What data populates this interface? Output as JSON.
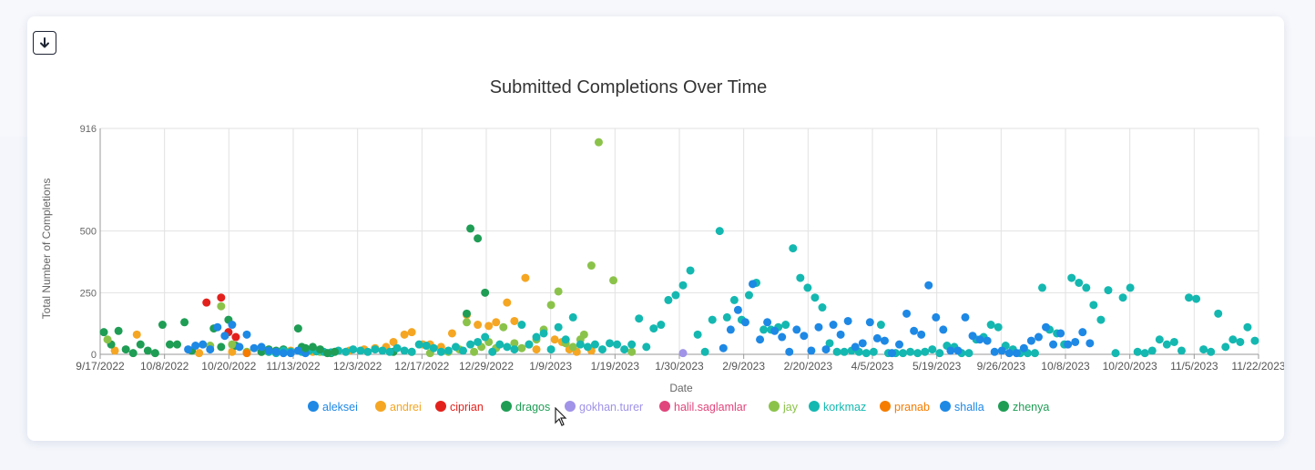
{
  "toolbar": {
    "download_icon": "arrow-down-icon"
  },
  "chart_data": {
    "type": "scatter",
    "title": "Submitted Completions Over Time",
    "xlabel": "Date",
    "ylabel": "Total Number of Completions",
    "ylim": [
      0,
      916
    ],
    "y_ticks": [
      0,
      250,
      500,
      916
    ],
    "x_scale": "category (dates)",
    "x_ticks": [
      "9/17/2022",
      "10/8/2022",
      "10/20/2022",
      "11/13/2022",
      "12/3/2022",
      "12/17/2022",
      "12/29/2022",
      "1/9/2023",
      "1/19/2023",
      "1/30/2023",
      "2/9/2023",
      "2/20/2023",
      "4/5/2023",
      "5/19/2023",
      "9/26/2023",
      "10/8/2023",
      "10/20/2023",
      "11/5/2023",
      "11/22/2023"
    ],
    "grid": true,
    "legend_position": "bottom",
    "series": [
      {
        "name": "aleksei",
        "color": "#1e88e5",
        "points": []
      },
      {
        "name": "andrei",
        "color": "#f5a623",
        "points": [
          [
            4,
            15
          ],
          [
            10,
            80
          ],
          [
            27,
            5
          ],
          [
            36,
            10
          ],
          [
            44,
            10
          ],
          [
            52,
            15
          ],
          [
            58,
            10
          ],
          [
            68,
            15
          ],
          [
            72,
            20
          ],
          [
            75,
            25
          ],
          [
            78,
            30
          ],
          [
            80,
            50
          ],
          [
            83,
            80
          ],
          [
            85,
            90
          ],
          [
            88,
            40
          ],
          [
            90,
            40
          ],
          [
            93,
            30
          ],
          [
            96,
            85
          ],
          [
            100,
            160
          ],
          [
            103,
            120
          ],
          [
            106,
            115
          ],
          [
            108,
            130
          ],
          [
            111,
            210
          ],
          [
            113,
            135
          ],
          [
            116,
            310
          ],
          [
            119,
            20
          ],
          [
            124,
            60
          ],
          [
            126,
            50
          ],
          [
            128,
            20
          ],
          [
            130,
            10
          ],
          [
            134,
            15
          ]
        ]
      },
      {
        "name": "ciprian",
        "color": "#e3211c",
        "points": [
          [
            29,
            210
          ],
          [
            33,
            230
          ],
          [
            35,
            90
          ],
          [
            37,
            70
          ]
        ]
      },
      {
        "name": "dragos",
        "color": "#1f9d55",
        "points": [
          [
            1,
            90
          ],
          [
            3,
            40
          ],
          [
            5,
            95
          ],
          [
            7,
            20
          ],
          [
            9,
            5
          ],
          [
            11,
            40
          ],
          [
            13,
            15
          ],
          [
            15,
            5
          ],
          [
            17,
            120
          ],
          [
            19,
            40
          ],
          [
            21,
            40
          ],
          [
            23,
            130
          ],
          [
            25,
            15
          ],
          [
            31,
            105
          ],
          [
            33,
            30
          ],
          [
            35,
            140
          ],
          [
            37,
            35
          ],
          [
            44,
            10
          ],
          [
            46,
            20
          ],
          [
            48,
            15
          ],
          [
            50,
            20
          ],
          [
            52,
            10
          ],
          [
            54,
            105
          ],
          [
            55,
            30
          ],
          [
            57,
            15
          ],
          [
            59,
            15
          ],
          [
            63,
            5
          ],
          [
            80,
            10
          ],
          [
            100,
            165
          ],
          [
            101,
            510
          ],
          [
            103,
            470
          ],
          [
            105,
            250
          ]
        ]
      },
      {
        "name": "gokhan.turer",
        "color": "#a093e8",
        "points": [
          [
            159,
            5
          ]
        ]
      },
      {
        "name": "halil.saglamlar",
        "color": "#e0457b",
        "points": []
      },
      {
        "name": "jay",
        "color": "#8bc34a",
        "points": [
          [
            2,
            60
          ],
          [
            30,
            35
          ],
          [
            33,
            195
          ],
          [
            36,
            40
          ],
          [
            40,
            10
          ],
          [
            46,
            10
          ],
          [
            60,
            10
          ],
          [
            85,
            10
          ],
          [
            90,
            5
          ],
          [
            95,
            10
          ],
          [
            98,
            20
          ],
          [
            100,
            130
          ],
          [
            102,
            10
          ],
          [
            104,
            30
          ],
          [
            106,
            50
          ],
          [
            108,
            25
          ],
          [
            110,
            110
          ],
          [
            113,
            45
          ],
          [
            115,
            25
          ],
          [
            117,
            40
          ],
          [
            119,
            60
          ],
          [
            121,
            100
          ],
          [
            123,
            200
          ],
          [
            125,
            255
          ],
          [
            127,
            45
          ],
          [
            129,
            30
          ],
          [
            131,
            60
          ],
          [
            132,
            80
          ],
          [
            134,
            360
          ],
          [
            136,
            860
          ],
          [
            140,
            300
          ],
          [
            145,
            10
          ]
        ]
      },
      {
        "name": "korkmaz",
        "color": "#14b8b0",
        "points": [
          [
            46,
            10
          ],
          [
            48,
            5
          ],
          [
            50,
            15
          ],
          [
            52,
            10
          ],
          [
            55,
            10
          ],
          [
            57,
            15
          ],
          [
            59,
            12
          ],
          [
            61,
            10
          ],
          [
            63,
            8
          ],
          [
            65,
            15
          ],
          [
            67,
            10
          ],
          [
            69,
            20
          ],
          [
            71,
            15
          ],
          [
            73,
            10
          ],
          [
            75,
            20
          ],
          [
            77,
            15
          ],
          [
            79,
            10
          ],
          [
            81,
            25
          ],
          [
            83,
            15
          ],
          [
            85,
            10
          ],
          [
            87,
            40
          ],
          [
            89,
            35
          ],
          [
            91,
            25
          ],
          [
            93,
            10
          ],
          [
            95,
            15
          ],
          [
            97,
            30
          ],
          [
            99,
            15
          ],
          [
            101,
            40
          ],
          [
            103,
            50
          ],
          [
            105,
            70
          ],
          [
            107,
            10
          ],
          [
            109,
            40
          ],
          [
            111,
            30
          ],
          [
            113,
            20
          ],
          [
            115,
            120
          ],
          [
            117,
            40
          ],
          [
            119,
            70
          ],
          [
            121,
            85
          ],
          [
            123,
            20
          ],
          [
            125,
            110
          ],
          [
            127,
            60
          ],
          [
            129,
            150
          ],
          [
            131,
            40
          ],
          [
            133,
            30
          ],
          [
            135,
            40
          ],
          [
            137,
            20
          ],
          [
            139,
            45
          ],
          [
            141,
            40
          ],
          [
            143,
            20
          ],
          [
            145,
            40
          ],
          [
            147,
            145
          ],
          [
            149,
            30
          ],
          [
            151,
            105
          ],
          [
            153,
            120
          ],
          [
            155,
            220
          ],
          [
            157,
            240
          ],
          [
            159,
            280
          ],
          [
            161,
            340
          ],
          [
            163,
            80
          ],
          [
            165,
            10
          ],
          [
            167,
            140
          ],
          [
            169,
            500
          ],
          [
            171,
            150
          ],
          [
            173,
            220
          ],
          [
            175,
            140
          ],
          [
            177,
            240
          ],
          [
            179,
            290
          ],
          [
            181,
            100
          ],
          [
            183,
            100
          ],
          [
            185,
            110
          ],
          [
            187,
            120
          ],
          [
            189,
            430
          ],
          [
            191,
            310
          ],
          [
            193,
            270
          ],
          [
            195,
            230
          ],
          [
            197,
            190
          ],
          [
            199,
            45
          ],
          [
            201,
            10
          ],
          [
            203,
            10
          ],
          [
            205,
            15
          ],
          [
            207,
            10
          ],
          [
            209,
            5
          ],
          [
            211,
            10
          ],
          [
            213,
            120
          ],
          [
            215,
            5
          ],
          [
            217,
            5
          ],
          [
            219,
            5
          ],
          [
            221,
            10
          ],
          [
            223,
            5
          ],
          [
            225,
            10
          ],
          [
            227,
            20
          ],
          [
            229,
            5
          ],
          [
            231,
            35
          ],
          [
            233,
            30
          ],
          [
            235,
            5
          ],
          [
            237,
            5
          ],
          [
            239,
            60
          ],
          [
            241,
            70
          ],
          [
            243,
            120
          ],
          [
            245,
            110
          ],
          [
            247,
            35
          ],
          [
            249,
            20
          ],
          [
            251,
            5
          ],
          [
            253,
            5
          ],
          [
            255,
            5
          ],
          [
            257,
            270
          ],
          [
            259,
            100
          ],
          [
            261,
            85
          ],
          [
            263,
            40
          ],
          [
            265,
            310
          ],
          [
            267,
            290
          ],
          [
            269,
            270
          ],
          [
            271,
            200
          ],
          [
            273,
            140
          ],
          [
            275,
            260
          ],
          [
            277,
            5
          ],
          [
            279,
            230
          ],
          [
            281,
            270
          ],
          [
            283,
            10
          ],
          [
            285,
            5
          ],
          [
            287,
            15
          ],
          [
            289,
            60
          ],
          [
            291,
            40
          ],
          [
            293,
            50
          ],
          [
            295,
            15
          ],
          [
            297,
            230
          ],
          [
            299,
            225
          ],
          [
            301,
            20
          ],
          [
            303,
            10
          ],
          [
            305,
            165
          ],
          [
            307,
            30
          ],
          [
            309,
            60
          ],
          [
            311,
            50
          ],
          [
            313,
            110
          ],
          [
            315,
            55
          ]
        ]
      },
      {
        "name": "pranab",
        "color": "#f57c00",
        "points": [
          [
            40,
            5
          ]
        ]
      },
      {
        "name": "shalla",
        "color": "#1e88e5",
        "points": [
          [
            24,
            20
          ],
          [
            26,
            35
          ],
          [
            28,
            40
          ],
          [
            30,
            20
          ],
          [
            32,
            110
          ],
          [
            34,
            75
          ],
          [
            36,
            120
          ],
          [
            38,
            30
          ],
          [
            40,
            80
          ],
          [
            42,
            25
          ],
          [
            44,
            30
          ],
          [
            46,
            15
          ],
          [
            48,
            10
          ],
          [
            50,
            5
          ],
          [
            52,
            5
          ],
          [
            54,
            15
          ],
          [
            56,
            5
          ],
          [
            170,
            25
          ],
          [
            172,
            100
          ],
          [
            174,
            180
          ],
          [
            176,
            130
          ],
          [
            178,
            285
          ],
          [
            180,
            60
          ],
          [
            182,
            130
          ],
          [
            184,
            95
          ],
          [
            186,
            70
          ],
          [
            188,
            10
          ],
          [
            190,
            100
          ],
          [
            192,
            75
          ],
          [
            194,
            15
          ],
          [
            196,
            110
          ],
          [
            198,
            20
          ],
          [
            200,
            120
          ],
          [
            202,
            80
          ],
          [
            204,
            135
          ],
          [
            206,
            30
          ],
          [
            208,
            45
          ],
          [
            210,
            130
          ],
          [
            212,
            65
          ],
          [
            214,
            55
          ],
          [
            216,
            5
          ],
          [
            218,
            40
          ],
          [
            220,
            165
          ],
          [
            222,
            95
          ],
          [
            224,
            80
          ],
          [
            226,
            280
          ],
          [
            228,
            150
          ],
          [
            230,
            100
          ],
          [
            232,
            15
          ],
          [
            234,
            15
          ],
          [
            236,
            150
          ],
          [
            238,
            75
          ],
          [
            240,
            60
          ],
          [
            242,
            55
          ],
          [
            244,
            10
          ],
          [
            246,
            15
          ],
          [
            248,
            5
          ],
          [
            250,
            5
          ],
          [
            252,
            25
          ],
          [
            254,
            55
          ],
          [
            256,
            70
          ],
          [
            258,
            110
          ],
          [
            260,
            40
          ],
          [
            262,
            85
          ],
          [
            264,
            40
          ],
          [
            266,
            50
          ],
          [
            268,
            90
          ],
          [
            270,
            45
          ]
        ]
      },
      {
        "name": "zhenya",
        "color": "#1f9d55",
        "points": [
          [
            56,
            25
          ],
          [
            58,
            30
          ],
          [
            60,
            20
          ],
          [
            62,
            5
          ],
          [
            64,
            10
          ]
        ]
      }
    ]
  }
}
